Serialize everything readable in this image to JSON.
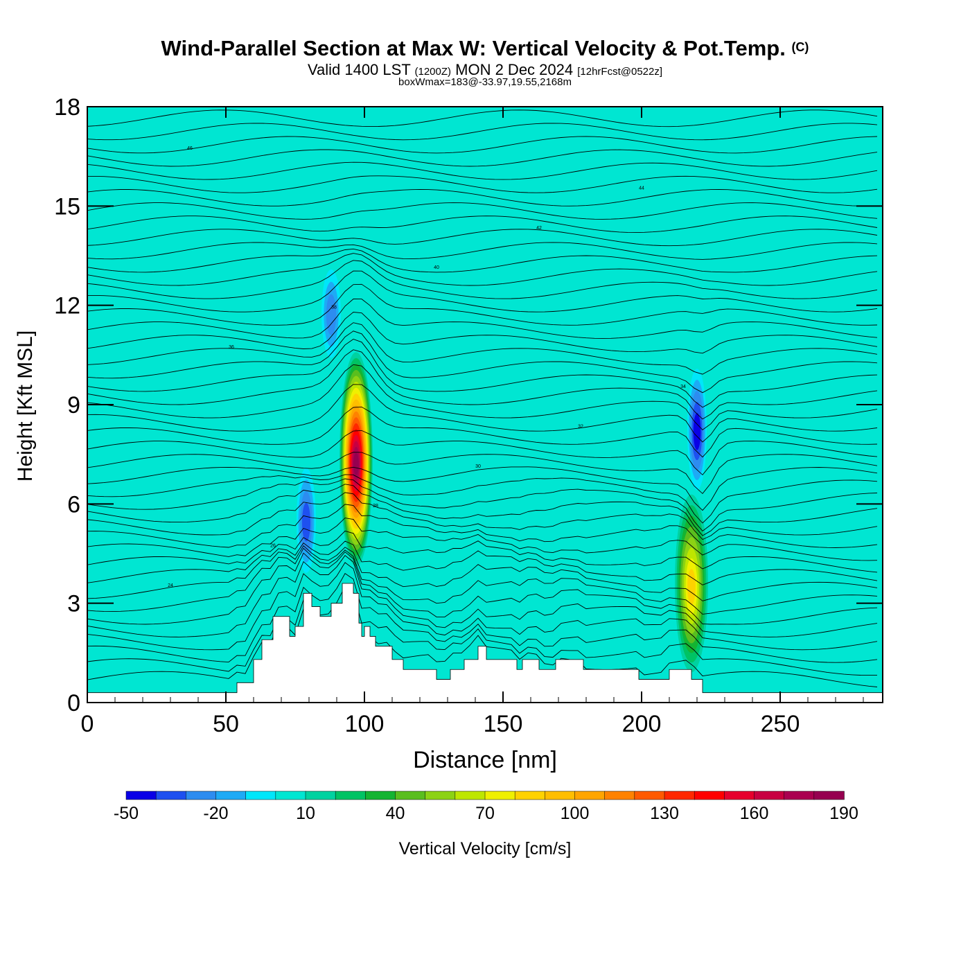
{
  "title": {
    "main": "Wind-Parallel Section at Max W: Vertical Velocity & Pot.Temp.",
    "copyright": "(C)",
    "valid_prefix": "Valid 1400 LST",
    "valid_zulu": "(1200Z)",
    "valid_date": "MON 2 Dec 2024",
    "forecast": "[12hrFcst@0522z]",
    "box_wmax": "boxWmax=183@-33.97,19.55,2168m"
  },
  "chart_data": {
    "type": "heatmap",
    "xlabel": "Distance [nm]",
    "ylabel": "Height [Kft MSL]",
    "xlim": [
      0,
      287
    ],
    "ylim": [
      0,
      18
    ],
    "x_ticks": [
      "0",
      "50",
      "100",
      "150",
      "200",
      "250"
    ],
    "x_tick_values": [
      0,
      50,
      100,
      150,
      200,
      250
    ],
    "y_ticks": [
      "0",
      "3",
      "6",
      "9",
      "12",
      "15",
      "18"
    ],
    "y_tick_values": [
      0,
      3,
      6,
      9,
      12,
      15,
      18
    ],
    "background_value": 0,
    "colorbar": {
      "label": "Vertical Velocity [cm/s]",
      "tick_labels": [
        "-50",
        "-20",
        "10",
        "40",
        "70",
        "100",
        "130",
        "160",
        "190"
      ],
      "tick_values": [
        -50,
        -20,
        10,
        40,
        70,
        100,
        130,
        160,
        190
      ],
      "bounds": [
        -50,
        -40,
        -30,
        -20,
        -10,
        0,
        10,
        20,
        30,
        40,
        50,
        60,
        70,
        80,
        90,
        100,
        110,
        120,
        130,
        140,
        150,
        160,
        170,
        180,
        190
      ],
      "colors": [
        "#0a00e6",
        "#1e50f0",
        "#2d8cf0",
        "#1eaaf5",
        "#00e6fa",
        "#00e6d2",
        "#00d2a0",
        "#00c364",
        "#14b432",
        "#5abe1e",
        "#8cd214",
        "#bee600",
        "#f0f000",
        "#ffd200",
        "#ffbe00",
        "#ffa500",
        "#ff8200",
        "#ff5a00",
        "#ff2800",
        "#ff0000",
        "#e6002d",
        "#c80041",
        "#aa0050",
        "#960050"
      ]
    },
    "updraft_cores": [
      {
        "x": 97,
        "y_bottom": 4.2,
        "y_top": 10.5,
        "max_value": 183
      },
      {
        "x": 218,
        "y_bottom": 1.0,
        "y_top": 6.2,
        "max_value": 80
      }
    ],
    "downdraft_cores": [
      {
        "x": 220,
        "y_bottom": 6.5,
        "y_top": 10.0,
        "min_value": -50
      },
      {
        "x": 79,
        "y_bottom": 4.0,
        "y_top": 7.0,
        "min_value": -35
      },
      {
        "x": 88,
        "y_bottom": 10.5,
        "y_top": 13.0,
        "min_value": -30
      }
    ],
    "terrain_profile": {
      "distance_nm": [
        0,
        53,
        54,
        60,
        63,
        67,
        73,
        75,
        78,
        81,
        84,
        85,
        88,
        92,
        96,
        98,
        99,
        100,
        102,
        104,
        107,
        110,
        114,
        118,
        126,
        131,
        136,
        141,
        144,
        151,
        155,
        157,
        163,
        169,
        179,
        198,
        199,
        210,
        218,
        222,
        287
      ],
      "height_kft": [
        0.3,
        0.3,
        0.6,
        1.3,
        1.9,
        2.6,
        2.0,
        2.3,
        3.3,
        2.9,
        2.6,
        2.6,
        3.0,
        3.6,
        3.3,
        2.4,
        2.0,
        2.3,
        2.0,
        1.7,
        1.7,
        1.3,
        1.0,
        1.0,
        0.7,
        1.0,
        1.3,
        1.7,
        1.3,
        1.3,
        1.0,
        1.3,
        1.0,
        1.3,
        1.0,
        1.0,
        0.7,
        1.0,
        0.7,
        0.3,
        0.3
      ]
    },
    "theta_contour_labels": [
      "24",
      "26",
      "28",
      "30",
      "32",
      "34",
      "36",
      "38",
      "40",
      "42",
      "44",
      "46"
    ]
  }
}
